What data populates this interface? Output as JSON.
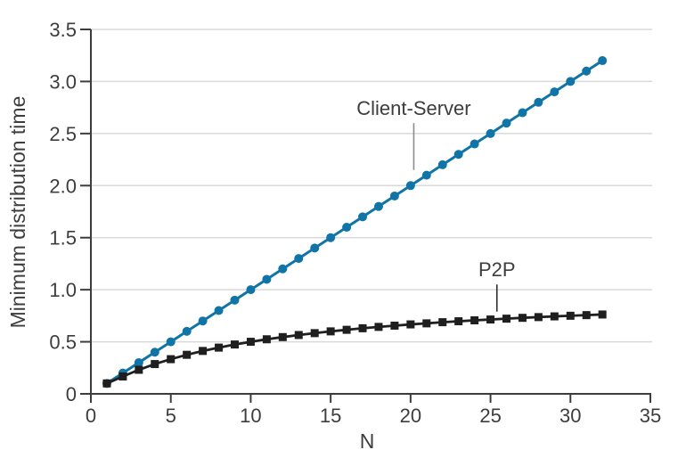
{
  "chart_data": {
    "type": "line",
    "title": "",
    "xlabel": "N",
    "ylabel": "Minimum distribution time",
    "xlim": [
      0,
      35
    ],
    "ylim": [
      0,
      3.5
    ],
    "x_ticks": [
      0,
      5,
      10,
      15,
      20,
      25,
      30,
      35
    ],
    "x_tick_labels": [
      "0",
      "5",
      "10",
      "15",
      "20",
      "25",
      "30",
      "35"
    ],
    "y_ticks": [
      0,
      0.5,
      1,
      1.5,
      2,
      2.5,
      3,
      3.5
    ],
    "y_tick_labels": [
      "0",
      "0.5",
      "1.0",
      "1.5",
      "2.0",
      "2.5",
      "3.0",
      "3.5"
    ],
    "grid": "horizontal-only",
    "legend_position": "inline-annotations",
    "x": [
      1,
      2,
      3,
      4,
      5,
      6,
      7,
      8,
      9,
      10,
      11,
      12,
      13,
      14,
      15,
      16,
      17,
      18,
      19,
      20,
      21,
      22,
      23,
      24,
      25,
      26,
      27,
      28,
      29,
      30,
      31,
      32
    ],
    "series": [
      {
        "name": "Client-Server",
        "marker": "circle",
        "color": "#1074a6",
        "values": [
          0.1,
          0.2,
          0.3,
          0.4,
          0.5,
          0.6,
          0.7,
          0.8,
          0.9,
          1.0,
          1.1,
          1.2,
          1.3,
          1.4,
          1.5,
          1.6,
          1.7,
          1.8,
          1.9,
          2.0,
          2.1,
          2.2,
          2.3,
          2.4,
          2.5,
          2.6,
          2.7,
          2.8,
          2.9,
          3.0,
          3.1,
          3.2
        ]
      },
      {
        "name": "P2P",
        "marker": "square",
        "color": "#1f1f1f",
        "values": [
          0.1,
          0.167,
          0.231,
          0.286,
          0.333,
          0.375,
          0.412,
          0.444,
          0.474,
          0.5,
          0.524,
          0.545,
          0.565,
          0.583,
          0.6,
          0.615,
          0.63,
          0.643,
          0.655,
          0.667,
          0.677,
          0.688,
          0.697,
          0.706,
          0.714,
          0.722,
          0.73,
          0.737,
          0.744,
          0.75,
          0.756,
          0.762
        ]
      }
    ],
    "annotations": [
      {
        "text": "Client-Server",
        "x": 20.2,
        "text_y": 2.68,
        "leader_from_y": 2.6,
        "leader_to_y": 2.15,
        "leader_color": "#8c8c8c"
      },
      {
        "text": "P2P",
        "x": 25.4,
        "text_y": 1.13,
        "leader_from_y": 1.05,
        "leader_to_y": 0.79,
        "leader_color": "#2e2e2e"
      }
    ],
    "colors": {
      "axis": "#3d3d3d",
      "grid": "#d9d9d9",
      "text": "#3d3d3d",
      "background": "#ffffff"
    }
  }
}
